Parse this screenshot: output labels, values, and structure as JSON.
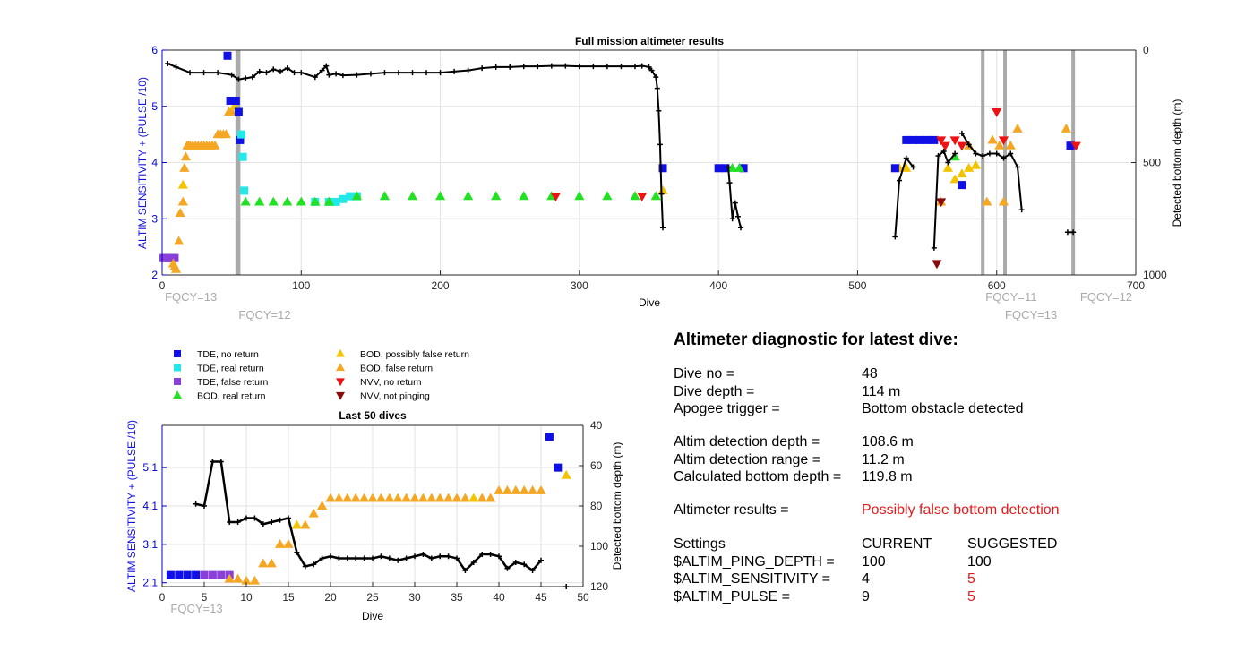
{
  "colors": {
    "tde_no_return": "#1010e6",
    "tde_real_return": "#23e8e8",
    "tde_false_return": "#8a3fd8",
    "bod_real_return": "#22e022",
    "bod_possibly_false_return": "#f5c400",
    "bod_false_return": "#f5a623",
    "nvv_no_return": "#ee1111",
    "nvv_not_pinging": "#8b0a0a",
    "depth": "#000000",
    "fqcy_line": "#aaaaaa",
    "left_axis": "#0000cc",
    "warning": "#e31a1c"
  },
  "legend": [
    {
      "key": "tde_no_return",
      "marker": "square",
      "label": "TDE, no return"
    },
    {
      "key": "tde_real_return",
      "marker": "square",
      "label": "TDE, real return"
    },
    {
      "key": "tde_false_return",
      "marker": "square",
      "label": "TDE, false return"
    },
    {
      "key": "bod_real_return",
      "marker": "triangle-up",
      "label": "BOD, real return"
    },
    {
      "key": "bod_possibly_false_return",
      "marker": "triangle-up",
      "label": "BOD, possibly false return"
    },
    {
      "key": "bod_false_return",
      "marker": "triangle-up",
      "label": "BOD, false return"
    },
    {
      "key": "nvv_no_return",
      "marker": "triangle-down",
      "label": "NVV, no return"
    },
    {
      "key": "nvv_not_pinging",
      "marker": "triangle-down",
      "label": "NVV, not pinging"
    }
  ],
  "diagnostic": {
    "title": "Altimeter diagnostic for latest dive:",
    "dive_no_label": "Dive no =",
    "dive_no": "48",
    "dive_depth_label": "Dive depth =",
    "dive_depth": "114 m",
    "apogee_label": "Apogee trigger =",
    "apogee": "Bottom obstacle detected",
    "altim_depth_label": "Altim detection depth =",
    "altim_depth": "108.6 m",
    "altim_range_label": "Altim detection range =",
    "altim_range": "11.2 m",
    "calc_depth_label": "Calculated bottom depth =",
    "calc_depth": "119.8 m",
    "results_label": "Altimeter results =",
    "results": "Possibly false bottom detection",
    "settings_label": "Settings",
    "current_label": "CURRENT",
    "suggested_label": "SUGGESTED",
    "settings": [
      {
        "name": "$ALTIM_PING_DEPTH =",
        "current": "100",
        "suggested": "100",
        "changed": false
      },
      {
        "name": "$ALTIM_SENSITIVITY =",
        "current": "4",
        "suggested": "5",
        "changed": true
      },
      {
        "name": "$ALTIM_PULSE =",
        "current": "9",
        "suggested": "5",
        "changed": true
      }
    ]
  },
  "chart_data": [
    {
      "type": "scatter",
      "title": "Full mission altimeter results",
      "xlabel": "Dive",
      "ylabel": "ALTIM SENSITIVITY + (PULSE /10)",
      "y2label": "Detected bottom depth (m)",
      "xlim": [
        0,
        700
      ],
      "ylim": [
        2,
        6
      ],
      "y2lim": [
        1000,
        0
      ],
      "grid": true,
      "xticks": [
        "0",
        "100",
        "200",
        "300",
        "400",
        "500",
        "600",
        "700"
      ],
      "yticks": [
        "2",
        "3",
        "4",
        "5",
        "6"
      ],
      "y2ticks": [
        "1000",
        "500",
        "0"
      ],
      "fqcy": [
        {
          "x": 54,
          "label": "FQCY=13",
          "label_x": 2,
          "label_row": 1
        },
        {
          "x": 55,
          "label": "FQCY=12",
          "label_x": 55,
          "label_row": 2
        },
        {
          "x": 590,
          "label": "FQCY=11",
          "label_x": 592,
          "label_row": 1
        },
        {
          "x": 606,
          "label": "FQCY=13",
          "label_x": 606,
          "label_row": 2
        },
        {
          "x": 655,
          "label": "FQCY=12",
          "label_x": 660,
          "label_row": 1
        }
      ],
      "markers": [
        {
          "cat": "tde_false_return",
          "x": [
            1,
            2,
            3,
            4,
            5,
            6,
            7,
            8,
            9
          ],
          "y": [
            2.3,
            2.3,
            2.3,
            2.3,
            2.3,
            2.3,
            2.3,
            2.3,
            2.3
          ]
        },
        {
          "cat": "bod_false_return",
          "x": [
            8,
            9,
            10,
            12,
            13,
            15,
            16,
            17,
            18,
            19,
            20,
            22,
            24,
            26,
            28,
            30,
            32,
            34,
            36,
            38,
            40,
            42,
            44,
            46,
            48,
            50
          ],
          "y": [
            2.2,
            2.15,
            2.1,
            2.6,
            3.1,
            3.3,
            3.9,
            4.1,
            4.3,
            4.3,
            4.3,
            4.3,
            4.3,
            4.3,
            4.3,
            4.3,
            4.3,
            4.3,
            4.3,
            4.3,
            4.5,
            4.5,
            4.5,
            4.5,
            4.9,
            4.9
          ]
        },
        {
          "cat": "bod_possibly_false_return",
          "x": [
            15,
            52,
            360,
            530,
            535,
            565,
            570,
            575,
            580,
            585
          ],
          "y": [
            3.6,
            5.0,
            3.5,
            3.9,
            3.9,
            3.9,
            3.7,
            3.8,
            3.9,
            3.95
          ]
        },
        {
          "cat": "tde_no_return",
          "x": [
            47,
            49,
            53,
            55,
            56,
            360,
            400,
            405,
            418,
            527,
            535,
            540,
            545,
            550,
            555,
            575,
            653
          ],
          "y": [
            5.9,
            5.1,
            5.1,
            4.9,
            4.4,
            3.9,
            3.9,
            3.9,
            3.9,
            3.9,
            4.4,
            4.4,
            4.4,
            4.4,
            4.4,
            3.6,
            4.3
          ]
        },
        {
          "cat": "tde_real_return",
          "x": [
            57,
            58,
            59,
            110,
            120,
            125,
            130,
            135,
            140
          ],
          "y": [
            4.5,
            4.1,
            3.5,
            3.3,
            3.3,
            3.3,
            3.35,
            3.4,
            3.4
          ]
        },
        {
          "cat": "bod_real_return",
          "x": [
            60,
            70,
            80,
            90,
            100,
            110,
            120,
            140,
            160,
            180,
            200,
            220,
            240,
            260,
            280,
            300,
            320,
            340,
            355,
            410,
            415,
            570
          ],
          "y": [
            3.3,
            3.3,
            3.3,
            3.3,
            3.3,
            3.3,
            3.3,
            3.4,
            3.4,
            3.4,
            3.4,
            3.4,
            3.4,
            3.4,
            3.4,
            3.4,
            3.4,
            3.4,
            3.4,
            3.9,
            3.9,
            4.1
          ]
        },
        {
          "cat": "bod_false_return",
          "x": [
            560,
            580,
            593,
            597,
            602,
            605,
            610,
            615,
            650
          ],
          "y": [
            3.3,
            4.3,
            3.3,
            4.4,
            4.3,
            3.3,
            4.3,
            4.6,
            4.6
          ]
        },
        {
          "cat": "nvv_no_return",
          "x": [
            283,
            345,
            560,
            563,
            570,
            575,
            600,
            605,
            657
          ],
          "y": [
            3.4,
            3.4,
            4.4,
            4.3,
            4.4,
            4.3,
            4.9,
            4.4,
            4.3
          ]
        },
        {
          "cat": "nvv_not_pinging",
          "x": [
            557,
            560
          ],
          "y": [
            2.2,
            3.3
          ]
        }
      ],
      "depth_x": [
        4,
        10,
        20,
        30,
        40,
        50,
        55,
        60,
        65,
        70,
        75,
        80,
        85,
        90,
        95,
        100,
        110,
        115,
        118,
        120,
        125,
        130,
        140,
        150,
        160,
        170,
        180,
        190,
        200,
        210,
        220,
        230,
        240,
        250,
        260,
        270,
        280,
        290,
        300,
        310,
        320,
        330,
        340,
        345,
        350,
        352,
        355,
        356,
        357,
        358,
        359,
        360
      ],
      "depth_y": [
        60,
        75,
        100,
        100,
        100,
        110,
        130,
        125,
        120,
        95,
        100,
        85,
        95,
        80,
        100,
        100,
        120,
        90,
        70,
        110,
        105,
        112,
        110,
        105,
        100,
        100,
        100,
        100,
        100,
        95,
        90,
        80,
        75,
        75,
        72,
        72,
        70,
        70,
        72,
        72,
        72,
        72,
        72,
        70,
        75,
        90,
        120,
        170,
        270,
        420,
        640,
        790
      ],
      "depth_segments": [
        {
          "x": [
            407,
            408,
            410,
            412,
            414,
            416
          ],
          "y": [
            520,
            590,
            750,
            680,
            740,
            790
          ]
        },
        {
          "x": [
            527,
            530,
            535,
            540
          ],
          "y": [
            830,
            580,
            480,
            520
          ]
        },
        {
          "x": [
            555,
            558,
            562,
            565,
            570
          ],
          "y": [
            880,
            470,
            450,
            500,
            460
          ]
        },
        {
          "x": [
            575,
            580,
            585,
            590,
            595,
            600,
            605,
            610,
            615,
            618
          ],
          "y": [
            370,
            420,
            460,
            470,
            460,
            460,
            480,
            460,
            520,
            710
          ]
        },
        {
          "x": [
            651,
            655
          ],
          "y": [
            810,
            810
          ]
        }
      ]
    },
    {
      "type": "scatter",
      "title": "Last 50 dives",
      "xlabel": "Dive",
      "ylabel": "ALTIM SENSITIVITY + (PULSE /10)",
      "y2label": "Detected bottom depth (m)",
      "xlim": [
        0,
        50
      ],
      "ylim": [
        2,
        6.2
      ],
      "y2lim": [
        120,
        40
      ],
      "grid": true,
      "xticks": [
        "0",
        "5",
        "10",
        "15",
        "20",
        "25",
        "30",
        "35",
        "40",
        "45",
        "50"
      ],
      "yticks": [
        "2.1",
        "3.1",
        "4.1",
        "5.1"
      ],
      "y2ticks": [
        "120",
        "100",
        "80",
        "60",
        "40"
      ],
      "fqcy": [
        {
          "x": 0,
          "label": "FQCY=13",
          "label_x": 1,
          "label_row": 1
        }
      ],
      "markers": [
        {
          "cat": "tde_no_return",
          "x": [
            1,
            2,
            3,
            4,
            46,
            47
          ],
          "y": [
            2.3,
            2.3,
            2.3,
            2.3,
            5.9,
            5.1
          ]
        },
        {
          "cat": "tde_false_return",
          "x": [
            5,
            6,
            7,
            8
          ],
          "y": [
            2.3,
            2.3,
            2.3,
            2.3
          ]
        },
        {
          "cat": "bod_false_return",
          "x": [
            8,
            9,
            10,
            11,
            12,
            13,
            14,
            15,
            17,
            18,
            19,
            20,
            21,
            22,
            23,
            24,
            25,
            26,
            27,
            28,
            29,
            30,
            31,
            32,
            33,
            34,
            35,
            36,
            38,
            39,
            40,
            41,
            42,
            43,
            44,
            45
          ],
          "y": [
            2.2,
            2.2,
            2.15,
            2.15,
            2.6,
            2.6,
            3.1,
            3.1,
            3.6,
            3.9,
            4.1,
            4.3,
            4.3,
            4.3,
            4.3,
            4.3,
            4.3,
            4.3,
            4.3,
            4.3,
            4.3,
            4.3,
            4.3,
            4.3,
            4.3,
            4.3,
            4.3,
            4.3,
            4.3,
            4.3,
            4.5,
            4.5,
            4.5,
            4.5,
            4.5,
            4.5
          ]
        },
        {
          "cat": "bod_possibly_false_return",
          "x": [
            16,
            37,
            48
          ],
          "y": [
            3.6,
            4.3,
            4.9
          ]
        }
      ],
      "depth_x": [
        4,
        5,
        6,
        7,
        8,
        9,
        10,
        11,
        12,
        13,
        14,
        15,
        16,
        17,
        18,
        19,
        20,
        21,
        22,
        23,
        24,
        25,
        26,
        27,
        28,
        29,
        30,
        31,
        32,
        33,
        34,
        35,
        36,
        37,
        38,
        39,
        40,
        41,
        42,
        43,
        44,
        45
      ],
      "depth_y": [
        79,
        80,
        58,
        58,
        88,
        88,
        86,
        86,
        89,
        88,
        87,
        86,
        103,
        110,
        109,
        106,
        105,
        106,
        106,
        106,
        106,
        106,
        105,
        106,
        107,
        106,
        105,
        104,
        106,
        105,
        105,
        106,
        112,
        108,
        104,
        104,
        105,
        111,
        108,
        109,
        112,
        107
      ],
      "depth_segments": [
        {
          "x": [
            48
          ],
          "y": [
            120
          ]
        }
      ]
    }
  ]
}
